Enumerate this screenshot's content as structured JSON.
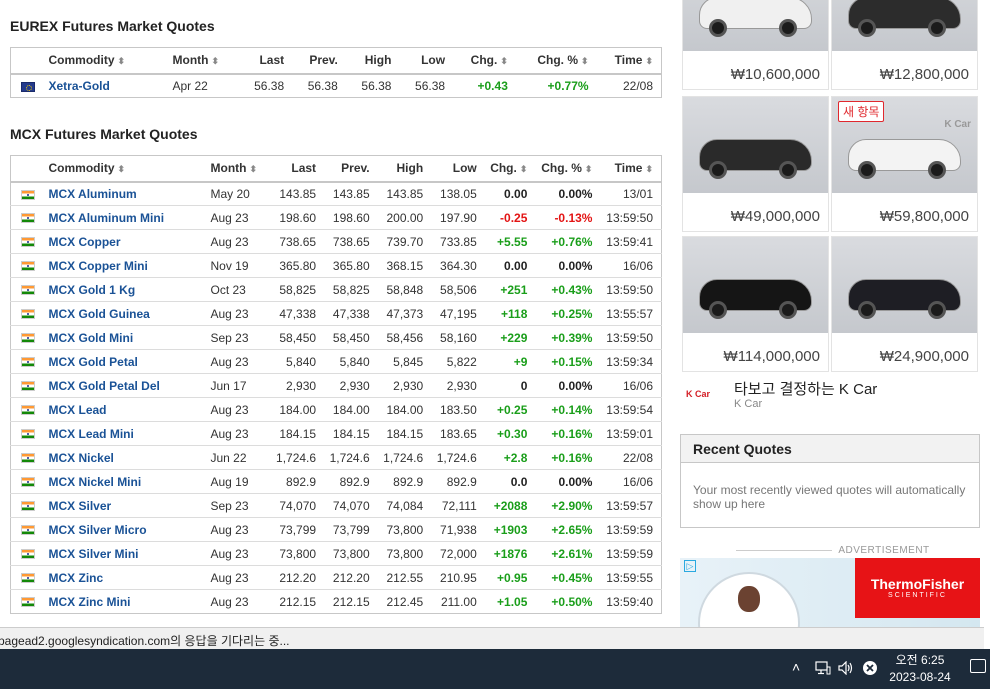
{
  "eurex": {
    "title": "EUREX Futures Market Quotes",
    "columns": [
      "Commodity",
      "Month",
      "Last",
      "Prev.",
      "High",
      "Low",
      "Chg.",
      "Chg. %",
      "Time"
    ],
    "rows": [
      {
        "flag": "eu-flag-icon",
        "name": "Xetra-Gold",
        "month": "Apr 22",
        "last": "56.38",
        "prev": "56.38",
        "high": "56.38",
        "low": "56.38",
        "chg": "+0.43",
        "chgp": "+0.77%",
        "time": "22/08",
        "dir": "pos"
      }
    ]
  },
  "mcx": {
    "title": "MCX Futures Market Quotes",
    "columns": [
      "Commodity",
      "Month",
      "Last",
      "Prev.",
      "High",
      "Low",
      "Chg.",
      "Chg. %",
      "Time"
    ],
    "rows": [
      {
        "flag": "india-flag-icon",
        "name": "MCX Aluminum",
        "month": "May 20",
        "last": "143.85",
        "prev": "143.85",
        "high": "143.85",
        "low": "138.05",
        "chg": "0.00",
        "chgp": "0.00%",
        "time": "13/01",
        "dir": "zero"
      },
      {
        "flag": "india-flag-icon",
        "name": "MCX Aluminum Mini",
        "month": "Aug 23",
        "last": "198.60",
        "prev": "198.60",
        "high": "200.00",
        "low": "197.90",
        "chg": "-0.25",
        "chgp": "-0.13%",
        "time": "13:59:50",
        "dir": "neg"
      },
      {
        "flag": "india-flag-icon",
        "name": "MCX Copper",
        "month": "Aug 23",
        "last": "738.65",
        "prev": "738.65",
        "high": "739.70",
        "low": "733.85",
        "chg": "+5.55",
        "chgp": "+0.76%",
        "time": "13:59:41",
        "dir": "pos"
      },
      {
        "flag": "india-flag-icon",
        "name": "MCX Copper Mini",
        "month": "Nov 19",
        "last": "365.80",
        "prev": "365.80",
        "high": "368.15",
        "low": "364.30",
        "chg": "0.00",
        "chgp": "0.00%",
        "time": "16/06",
        "dir": "zero"
      },
      {
        "flag": "india-flag-icon",
        "name": "MCX Gold 1 Kg",
        "month": "Oct 23",
        "last": "58,825",
        "prev": "58,825",
        "high": "58,848",
        "low": "58,506",
        "chg": "+251",
        "chgp": "+0.43%",
        "time": "13:59:50",
        "dir": "pos"
      },
      {
        "flag": "india-flag-icon",
        "name": "MCX Gold Guinea",
        "month": "Aug 23",
        "last": "47,338",
        "prev": "47,338",
        "high": "47,373",
        "low": "47,195",
        "chg": "+118",
        "chgp": "+0.25%",
        "time": "13:55:57",
        "dir": "pos"
      },
      {
        "flag": "india-flag-icon",
        "name": "MCX Gold Mini",
        "month": "Sep 23",
        "last": "58,450",
        "prev": "58,450",
        "high": "58,456",
        "low": "58,160",
        "chg": "+229",
        "chgp": "+0.39%",
        "time": "13:59:50",
        "dir": "pos"
      },
      {
        "flag": "india-flag-icon",
        "name": "MCX Gold Petal",
        "month": "Aug 23",
        "last": "5,840",
        "prev": "5,840",
        "high": "5,845",
        "low": "5,822",
        "chg": "+9",
        "chgp": "+0.15%",
        "time": "13:59:34",
        "dir": "pos"
      },
      {
        "flag": "india-flag-icon",
        "name": "MCX Gold Petal Del",
        "month": "Jun 17",
        "last": "2,930",
        "prev": "2,930",
        "high": "2,930",
        "low": "2,930",
        "chg": "0",
        "chgp": "0.00%",
        "time": "16/06",
        "dir": "zero"
      },
      {
        "flag": "india-flag-icon",
        "name": "MCX Lead",
        "month": "Aug 23",
        "last": "184.00",
        "prev": "184.00",
        "high": "184.00",
        "low": "183.50",
        "chg": "+0.25",
        "chgp": "+0.14%",
        "time": "13:59:54",
        "dir": "pos"
      },
      {
        "flag": "india-flag-icon",
        "name": "MCX Lead Mini",
        "month": "Aug 23",
        "last": "184.15",
        "prev": "184.15",
        "high": "184.15",
        "low": "183.65",
        "chg": "+0.30",
        "chgp": "+0.16%",
        "time": "13:59:01",
        "dir": "pos"
      },
      {
        "flag": "india-flag-icon",
        "name": "MCX Nickel",
        "month": "Jun 22",
        "last": "1,724.6",
        "prev": "1,724.6",
        "high": "1,724.6",
        "low": "1,724.6",
        "chg": "+2.8",
        "chgp": "+0.16%",
        "time": "22/08",
        "dir": "pos"
      },
      {
        "flag": "india-flag-icon",
        "name": "MCX Nickel Mini",
        "month": "Aug 19",
        "last": "892.9",
        "prev": "892.9",
        "high": "892.9",
        "low": "892.9",
        "chg": "0.0",
        "chgp": "0.00%",
        "time": "16/06",
        "dir": "zero"
      },
      {
        "flag": "india-flag-icon",
        "name": "MCX Silver",
        "month": "Sep 23",
        "last": "74,070",
        "prev": "74,070",
        "high": "74,084",
        "low": "72,111",
        "chg": "+2088",
        "chgp": "+2.90%",
        "time": "13:59:57",
        "dir": "pos"
      },
      {
        "flag": "india-flag-icon",
        "name": "MCX Silver Micro",
        "month": "Aug 23",
        "last": "73,799",
        "prev": "73,799",
        "high": "73,800",
        "low": "71,938",
        "chg": "+1903",
        "chgp": "+2.65%",
        "time": "13:59:59",
        "dir": "pos"
      },
      {
        "flag": "india-flag-icon",
        "name": "MCX Silver Mini",
        "month": "Aug 23",
        "last": "73,800",
        "prev": "73,800",
        "high": "73,800",
        "low": "72,000",
        "chg": "+1876",
        "chgp": "+2.61%",
        "time": "13:59:59",
        "dir": "pos"
      },
      {
        "flag": "india-flag-icon",
        "name": "MCX Zinc",
        "month": "Aug 23",
        "last": "212.20",
        "prev": "212.20",
        "high": "212.55",
        "low": "210.95",
        "chg": "+0.95",
        "chgp": "+0.45%",
        "time": "13:59:55",
        "dir": "pos"
      },
      {
        "flag": "india-flag-icon",
        "name": "MCX Zinc Mini",
        "month": "Aug 23",
        "last": "212.15",
        "prev": "212.15",
        "high": "212.45",
        "low": "211.00",
        "chg": "+1.05",
        "chgp": "+0.50%",
        "time": "13:59:40",
        "dir": "pos"
      }
    ]
  },
  "ads": {
    "cars": [
      {
        "price": "₩10,600,000",
        "color": "#f0f0f0",
        "badge": "",
        "mark": ""
      },
      {
        "price": "₩12,800,000",
        "color": "#2c2c2c",
        "badge": "",
        "mark": ""
      },
      {
        "price": "₩49,000,000",
        "color": "#2a2a2a",
        "badge": "",
        "mark": ""
      },
      {
        "price": "₩59,800,000",
        "color": "#f3f3f3",
        "badge": "새 항목",
        "mark": "K Car"
      },
      {
        "price": "₩114,000,000",
        "color": "#151515",
        "badge": "",
        "mark": ""
      },
      {
        "price": "₩24,900,000",
        "color": "#1e1e24",
        "badge": "",
        "mark": ""
      }
    ],
    "kcar_logo": "K Car",
    "ad_title": "타보고 결정하는 K Car",
    "ad_subtitle": "K Car",
    "advertisement_label": "ADVERTISEMENT",
    "banner_brand": "ThermoFisher",
    "banner_brand_sub": "SCIENTIFIC"
  },
  "recent_quotes": {
    "title": "Recent Quotes",
    "message": "Your most recently viewed quotes will automatically show up here"
  },
  "status_bar": {
    "text": "pagead2.googlesyndication.com의 응답을 기다리는 중..."
  },
  "taskbar": {
    "time": "오전 6:25",
    "date": "2023-08-24",
    "icons": [
      "chevron-up-icon",
      "network-icon",
      "volume-icon",
      "ime-icon",
      "notification-icon"
    ]
  },
  "colors": {
    "positive": "#1a9e1a",
    "negative": "#e31414",
    "link": "#1a5296"
  }
}
